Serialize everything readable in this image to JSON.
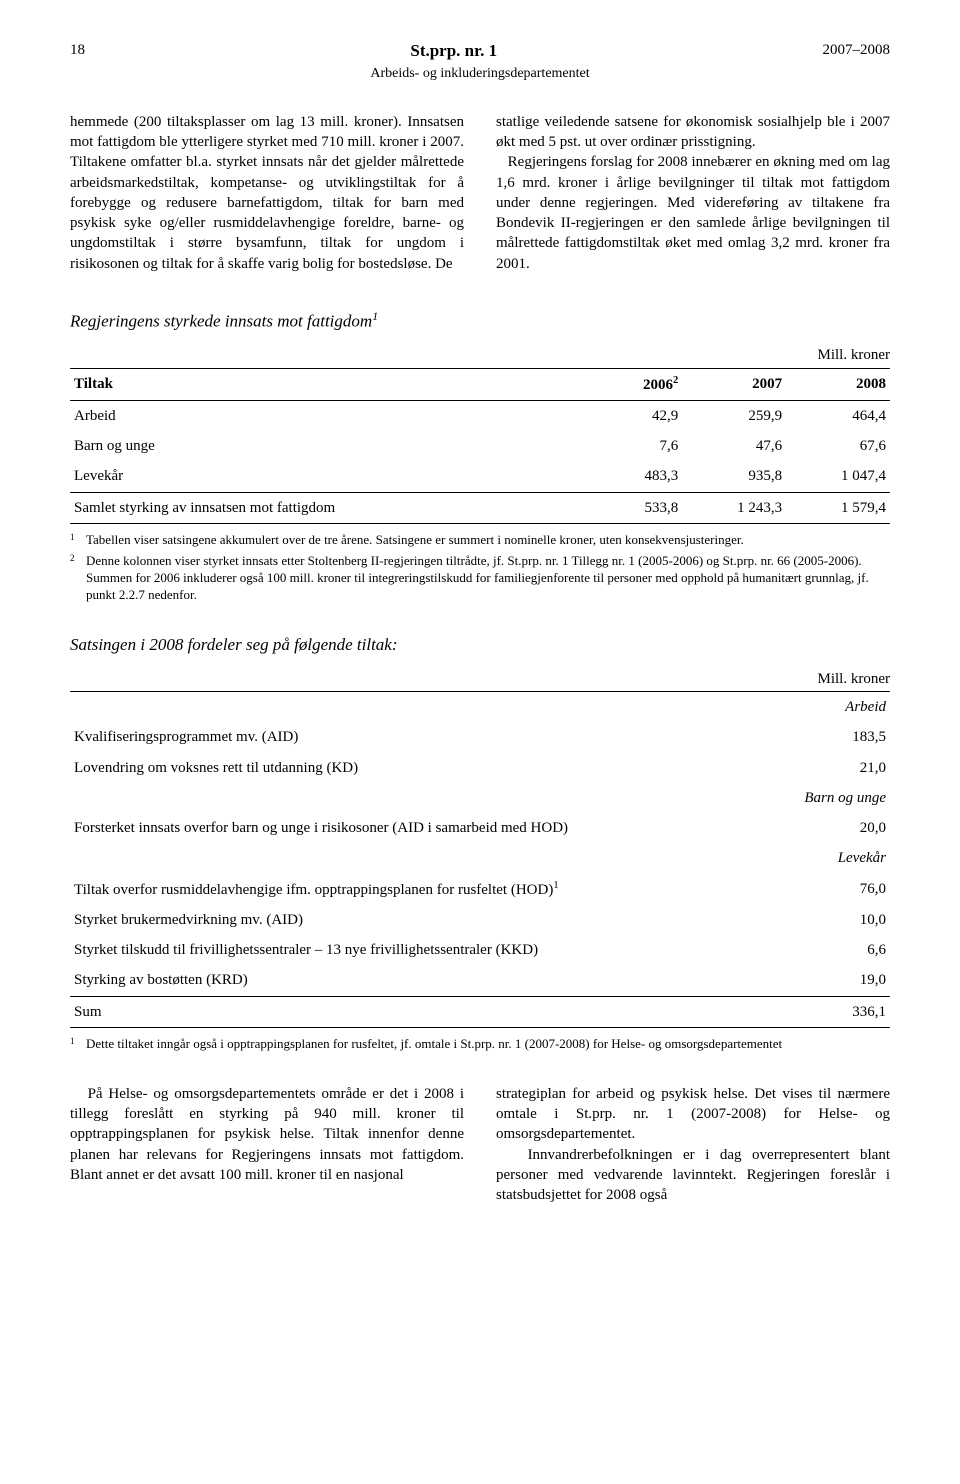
{
  "header": {
    "page_number": "18",
    "title": "St.prp. nr. 1",
    "year_range": "2007–2008",
    "subtitle": "Arbeids- og inkluderingsdepartementet"
  },
  "body_top": {
    "left": "hemmede (200 tiltaksplasser om lag 13 mill. kroner). Innsatsen mot fattigdom ble ytterligere styrket med 710 mill. kroner i 2007. Tiltakene omfatter bl.a. styrket innsats når det gjelder målrettede arbeidsmarkedstiltak, kompetanse- og utviklingstiltak for å forebygge og redusere barnefattigdom, tiltak for barn med psykisk syke og/eller rusmiddelavhengige foreldre, barne- og ungdomstiltak i større bysamfunn, tiltak for ungdom i risikosonen og tiltak for å skaffe varig bolig for bostedsløse. De",
    "right": "statlige veiledende satsene for økonomisk sosialhjelp ble i 2007 økt med 5 pst. ut over ordinær prisstigning.\n   Regjeringens forslag for 2008 innebærer en økning med om lag 1,6 mrd. kroner i årlige bevilgninger til tiltak mot fattigdom under denne regjeringen. Med videreføring av tiltakene fra Bondevik II-regjeringen er den samlede årlige bevilgningen til målrettede fattigdomstiltak øket med omlag 3,2 mrd. kroner fra 2001."
  },
  "table1": {
    "title": "Regjeringens styrkede innsats mot fattigdom",
    "title_sup": "1",
    "unit": "Mill. kroner",
    "columns": [
      "Tiltak",
      "2006",
      "2007",
      "2008"
    ],
    "col2_sup": "2",
    "rows": [
      [
        "Arbeid",
        "42,9",
        "259,9",
        "464,4"
      ],
      [
        "Barn og unge",
        "7,6",
        "47,6",
        "67,6"
      ],
      [
        "Levekår",
        "483,3",
        "935,8",
        "1 047,4"
      ],
      [
        "Samlet styrking av innsatsen mot fattigdom",
        "533,8",
        "1 243,3",
        "1 579,4"
      ]
    ],
    "footnotes": [
      {
        "n": "1",
        "t": "Tabellen viser satsingene akkumulert over de tre årene. Satsingene er summert i nominelle kroner, uten konsekvensjusteringer."
      },
      {
        "n": "2",
        "t": "Denne kolonnen viser styrket innsats etter Stoltenberg II-regjeringen tiltrådte, jf. St.prp. nr. 1 Tillegg nr. 1 (2005-2006) og St.prp. nr. 66 (2005-2006). Summen for 2006 inkluderer også 100 mill. kroner til integreringstilskudd for familiegjenforente til personer med opphold på humanitært grunnlag, jf. punkt 2.2.7 nedenfor."
      }
    ]
  },
  "table2": {
    "title": "Satsingen i 2008 fordeler seg på følgende tiltak:",
    "unit": "Mill. kroner",
    "groups": [
      {
        "header": "Arbeid",
        "rows": [
          {
            "label": "Kvalifiseringsprogrammet mv. (AID)",
            "value": "183,5"
          },
          {
            "label": "Lovendring om voksnes rett til utdanning (KD)",
            "value": "21,0"
          }
        ]
      },
      {
        "header": "Barn og unge",
        "rows": [
          {
            "label": "Forsterket innsats overfor barn og unge i risikosoner (AID i samarbeid med HOD)",
            "value": "20,0"
          }
        ]
      },
      {
        "header": "Levekår",
        "rows": [
          {
            "label": "Tiltak overfor rusmiddelavhengige ifm. opptrappingsplanen for rusfeltet (HOD)",
            "sup": "1",
            "value": "76,0"
          },
          {
            "label": "Styrket brukermedvirkning mv. (AID)",
            "value": "10,0"
          },
          {
            "label": "Styrket tilskudd til frivillighetssentraler – 13 nye frivillighetssentraler (KKD)",
            "value": "6,6"
          },
          {
            "label": "Styrking av bostøtten (KRD)",
            "value": "19,0"
          }
        ]
      }
    ],
    "sum": {
      "label": "Sum",
      "value": "336,1"
    },
    "footnotes": [
      {
        "n": "1",
        "t": "Dette tiltaket inngår også i opptrappingsplanen for rusfeltet, jf. omtale i St.prp. nr. 1 (2007-2008) for Helse- og omsorgsdepartementet"
      }
    ]
  },
  "body_bottom": {
    "left": "   På Helse- og omsorgsdepartementets område er det i 2008 i tillegg foreslått en styrking på 940 mill. kroner til opptrappingsplanen for psykisk helse. Tiltak innenfor denne planen har relevans for Regjeringens innsats mot fattigdom. Blant annet er det avsatt 100 mill. kroner til en nasjonal",
    "right": "strategiplan for arbeid og psykisk helse. Det vises til nærmere omtale i St.prp. nr. 1 (2007-2008) for Helse- og omsorgsdepartementet.\n   Innvandrerbefolkningen er i dag overrepresentert blant personer med vedvarende lavinntekt. Regjeringen foreslår i statsbudsjettet for 2008 også"
  }
}
